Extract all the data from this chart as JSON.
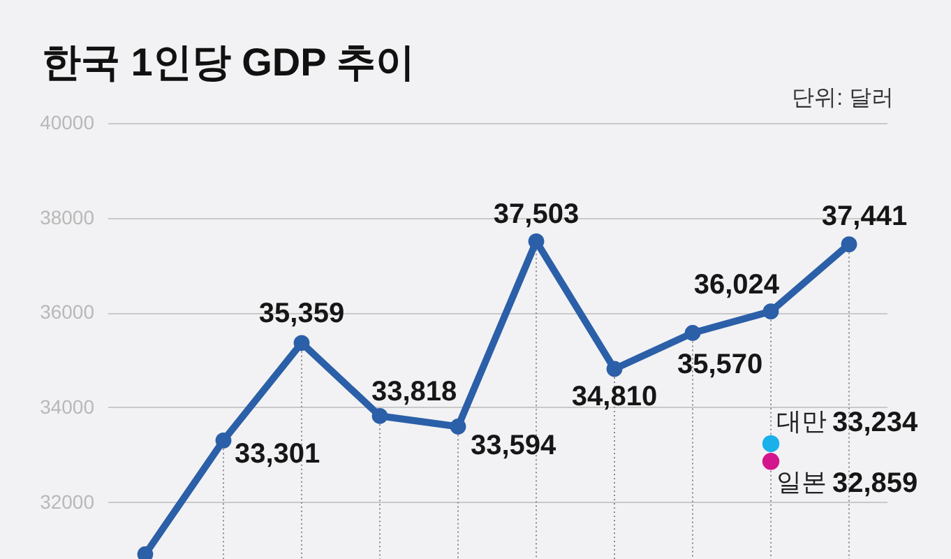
{
  "chart_data": {
    "type": "line",
    "title": "한국 1인당 GDP 추이",
    "annotations": [
      "단위: 달러"
    ],
    "categories": [
      null,
      null,
      null,
      null,
      null,
      null,
      null,
      null,
      null,
      null
    ],
    "series": [
      {
        "color": "#2b5fa8",
        "values": [
          30900,
          33301,
          35359,
          33818,
          33594,
          37503,
          34810,
          35570,
          36024,
          37441
        ],
        "value_labels": [
          null,
          "33,301",
          "35,359",
          "33,818",
          "33,594",
          "37,503",
          "34,810",
          "35,570",
          "36,024",
          "37,441"
        ]
      },
      {
        "type": "scatter",
        "name": "대만",
        "color": "#1ab0ea",
        "values": [
          null,
          null,
          null,
          null,
          null,
          null,
          null,
          null,
          33234,
          null
        ],
        "value_labels": [
          null,
          null,
          null,
          null,
          null,
          null,
          null,
          null,
          "33,234",
          null
        ]
      },
      {
        "type": "scatter",
        "name": "일본",
        "color": "#d4168c",
        "values": [
          null,
          null,
          null,
          null,
          null,
          null,
          null,
          null,
          32859,
          null
        ],
        "value_labels": [
          null,
          null,
          null,
          null,
          null,
          null,
          null,
          null,
          "32,859",
          null
        ]
      }
    ],
    "ylim": [
      30800,
      40000
    ],
    "yticks": [
      32000,
      34000,
      36000,
      38000,
      40000
    ],
    "grid": "y",
    "tick_labels": "y",
    "marker": "circle",
    "line_style": "solid"
  }
}
